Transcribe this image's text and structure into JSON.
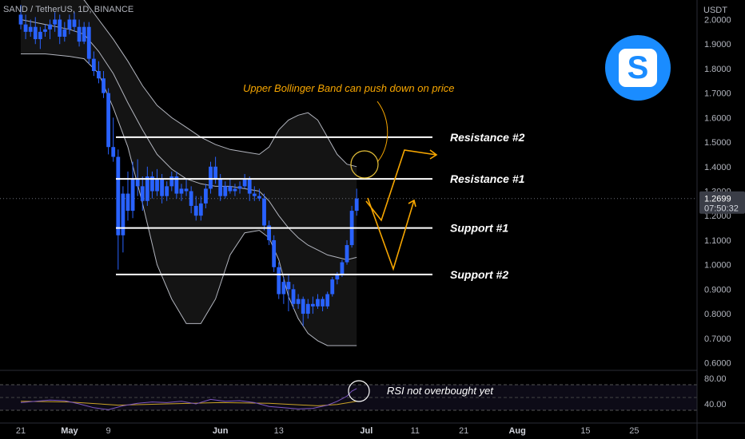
{
  "header": {
    "symbol": "SAND / TetherUS, 1D, BINANCE",
    "currency": "USDT"
  },
  "price_tag": {
    "price": "1.2699",
    "countdown": "07:50:32"
  },
  "logo_letter": "S",
  "colors": {
    "background": "#000000",
    "candle": "#2962ff",
    "band": "#b2b5be",
    "band_fill": "#141414",
    "level_line": "#ffffff",
    "annotation": "#f7a600",
    "rsi_line": "#7e57c2",
    "rsi_ma": "#c9a227"
  },
  "chart_data": [
    {
      "type": "candlestick",
      "title": "SAND / TetherUS, 1D, BINANCE",
      "y_axis": {
        "unit": "USDT",
        "range": [
          0.6,
          2.0
        ],
        "ticks": [
          2.0,
          1.9,
          1.8,
          1.7,
          1.6,
          1.5,
          1.4,
          1.3,
          1.2,
          1.1,
          1.0,
          0.9,
          0.8,
          0.7,
          0.6
        ],
        "tick_labels": [
          "2.0000",
          "1.9000",
          "1.8000",
          "1.7000",
          "1.6000",
          "1.5000",
          "1.4000",
          "1.3000",
          "1.2000",
          "1.1000",
          "1.0000",
          "0.9000",
          "0.8000",
          "0.7000",
          "0.6000"
        ],
        "last_price": 1.2699
      },
      "x_axis": {
        "tick_labels": [
          "21",
          "May",
          "9",
          "Jun",
          "13",
          "Jul",
          "11",
          "21",
          "Aug",
          "15",
          "25"
        ],
        "start_date": "2022-04-21",
        "end_date": "2022-08-27",
        "ticks": [
          "2022-04-21",
          "2022-05-01",
          "2022-05-09",
          "2022-06-01",
          "2022-06-13",
          "2022-07-01",
          "2022-07-11",
          "2022-07-21",
          "2022-08-01",
          "2022-08-15",
          "2022-08-25"
        ]
      },
      "candles": [
        [
          "2022-04-21",
          2.02,
          2.06,
          1.96,
          1.98
        ],
        [
          "2022-04-22",
          1.98,
          2.02,
          1.92,
          1.95
        ],
        [
          "2022-04-23",
          1.95,
          2.0,
          1.93,
          1.97
        ],
        [
          "2022-04-24",
          1.97,
          2.01,
          1.9,
          1.92
        ],
        [
          "2022-04-25",
          1.92,
          1.97,
          1.88,
          1.95
        ],
        [
          "2022-04-26",
          1.95,
          1.98,
          1.93,
          1.96
        ],
        [
          "2022-04-27",
          1.96,
          2.0,
          1.92,
          1.98
        ],
        [
          "2022-04-28",
          1.98,
          2.03,
          1.95,
          2.0
        ],
        [
          "2022-04-29",
          2.0,
          2.02,
          1.9,
          1.93
        ],
        [
          "2022-04-30",
          1.93,
          1.99,
          1.91,
          1.96
        ],
        [
          "2022-05-01",
          1.96,
          2.02,
          1.94,
          2.0
        ],
        [
          "2022-05-02",
          2.0,
          2.03,
          1.95,
          1.97
        ],
        [
          "2022-05-03",
          1.97,
          2.0,
          1.89,
          1.91
        ],
        [
          "2022-05-04",
          1.91,
          1.99,
          1.9,
          1.97
        ],
        [
          "2022-05-05",
          1.97,
          1.99,
          1.82,
          1.84
        ],
        [
          "2022-05-06",
          1.84,
          1.87,
          1.77,
          1.79
        ],
        [
          "2022-05-07",
          1.79,
          1.83,
          1.74,
          1.76
        ],
        [
          "2022-05-08",
          1.76,
          1.79,
          1.68,
          1.7
        ],
        [
          "2022-05-09",
          1.7,
          1.72,
          1.45,
          1.48
        ],
        [
          "2022-05-10",
          1.48,
          1.6,
          1.42,
          1.44
        ],
        [
          "2022-05-11",
          1.44,
          1.47,
          0.98,
          1.12
        ],
        [
          "2022-05-12",
          1.12,
          1.32,
          1.05,
          1.29
        ],
        [
          "2022-05-13",
          1.29,
          1.38,
          1.18,
          1.22
        ],
        [
          "2022-05-14",
          1.22,
          1.42,
          1.19,
          1.35
        ],
        [
          "2022-05-15",
          1.35,
          1.43,
          1.28,
          1.32
        ],
        [
          "2022-05-16",
          1.32,
          1.36,
          1.22,
          1.26
        ],
        [
          "2022-05-17",
          1.26,
          1.4,
          1.24,
          1.36
        ],
        [
          "2022-05-18",
          1.36,
          1.38,
          1.27,
          1.3
        ],
        [
          "2022-05-19",
          1.3,
          1.39,
          1.28,
          1.35
        ],
        [
          "2022-05-20",
          1.35,
          1.37,
          1.25,
          1.28
        ],
        [
          "2022-05-21",
          1.28,
          1.34,
          1.26,
          1.32
        ],
        [
          "2022-05-22",
          1.32,
          1.38,
          1.3,
          1.36
        ],
        [
          "2022-05-23",
          1.36,
          1.38,
          1.27,
          1.29
        ],
        [
          "2022-05-24",
          1.29,
          1.33,
          1.26,
          1.31
        ],
        [
          "2022-05-25",
          1.31,
          1.35,
          1.28,
          1.3
        ],
        [
          "2022-05-26",
          1.3,
          1.32,
          1.21,
          1.24
        ],
        [
          "2022-05-27",
          1.24,
          1.28,
          1.18,
          1.2
        ],
        [
          "2022-05-28",
          1.2,
          1.28,
          1.18,
          1.25
        ],
        [
          "2022-05-29",
          1.25,
          1.33,
          1.23,
          1.31
        ],
        [
          "2022-05-30",
          1.31,
          1.42,
          1.29,
          1.4
        ],
        [
          "2022-05-31",
          1.4,
          1.44,
          1.33,
          1.35
        ],
        [
          "2022-06-01",
          1.35,
          1.37,
          1.26,
          1.28
        ],
        [
          "2022-06-02",
          1.28,
          1.34,
          1.27,
          1.32
        ],
        [
          "2022-06-03",
          1.32,
          1.35,
          1.29,
          1.3
        ],
        [
          "2022-06-04",
          1.3,
          1.33,
          1.28,
          1.31
        ],
        [
          "2022-06-05",
          1.31,
          1.34,
          1.29,
          1.32
        ],
        [
          "2022-06-06",
          1.32,
          1.37,
          1.31,
          1.35
        ],
        [
          "2022-06-07",
          1.35,
          1.36,
          1.26,
          1.29
        ],
        [
          "2022-06-08",
          1.29,
          1.32,
          1.26,
          1.28
        ],
        [
          "2022-06-09",
          1.28,
          1.31,
          1.26,
          1.27
        ],
        [
          "2022-06-10",
          1.27,
          1.29,
          1.14,
          1.16
        ],
        [
          "2022-06-11",
          1.16,
          1.18,
          1.08,
          1.1
        ],
        [
          "2022-06-12",
          1.1,
          1.12,
          0.97,
          0.99
        ],
        [
          "2022-06-13",
          0.99,
          1.01,
          0.86,
          0.88
        ],
        [
          "2022-06-14",
          0.88,
          0.95,
          0.84,
          0.93
        ],
        [
          "2022-06-15",
          0.93,
          0.96,
          0.81,
          0.9
        ],
        [
          "2022-06-16",
          0.9,
          0.92,
          0.82,
          0.84
        ],
        [
          "2022-06-17",
          0.84,
          0.88,
          0.82,
          0.86
        ],
        [
          "2022-06-18",
          0.86,
          0.87,
          0.75,
          0.8
        ],
        [
          "2022-06-19",
          0.8,
          0.86,
          0.78,
          0.84
        ],
        [
          "2022-06-20",
          0.84,
          0.87,
          0.8,
          0.83
        ],
        [
          "2022-06-21",
          0.83,
          0.88,
          0.82,
          0.86
        ],
        [
          "2022-06-22",
          0.86,
          0.87,
          0.81,
          0.83
        ],
        [
          "2022-06-23",
          0.83,
          0.89,
          0.82,
          0.88
        ],
        [
          "2022-06-24",
          0.88,
          0.95,
          0.87,
          0.94
        ],
        [
          "2022-06-25",
          0.94,
          0.97,
          0.92,
          0.96
        ],
        [
          "2022-06-26",
          0.96,
          1.02,
          0.95,
          1.01
        ],
        [
          "2022-06-27",
          1.01,
          1.1,
          1.0,
          1.08
        ],
        [
          "2022-06-28",
          1.08,
          1.24,
          1.07,
          1.22
        ],
        [
          "2022-06-29",
          1.22,
          1.31,
          1.2,
          1.27
        ]
      ],
      "bollinger": {
        "dates": [
          "2022-04-21",
          "2022-04-26",
          "2022-05-01",
          "2022-05-04",
          "2022-05-07",
          "2022-05-10",
          "2022-05-13",
          "2022-05-16",
          "2022-05-19",
          "2022-05-22",
          "2022-05-25",
          "2022-05-28",
          "2022-05-31",
          "2022-06-03",
          "2022-06-06",
          "2022-06-09",
          "2022-06-11",
          "2022-06-13",
          "2022-06-15",
          "2022-06-17",
          "2022-06-19",
          "2022-06-21",
          "2022-06-23",
          "2022-06-25",
          "2022-06-27",
          "2022-06-29"
        ],
        "upper": [
          2.15,
          2.12,
          2.1,
          2.08,
          2.0,
          1.92,
          1.83,
          1.73,
          1.65,
          1.6,
          1.56,
          1.52,
          1.49,
          1.47,
          1.46,
          1.45,
          1.48,
          1.55,
          1.59,
          1.61,
          1.62,
          1.59,
          1.52,
          1.45,
          1.41,
          1.4
        ],
        "middle": [
          2.0,
          1.98,
          1.96,
          1.94,
          1.87,
          1.78,
          1.66,
          1.55,
          1.45,
          1.39,
          1.35,
          1.33,
          1.32,
          1.32,
          1.31,
          1.3,
          1.26,
          1.2,
          1.15,
          1.11,
          1.08,
          1.06,
          1.04,
          1.03,
          1.02,
          1.03
        ],
        "lower": [
          1.86,
          1.86,
          1.85,
          1.84,
          1.78,
          1.64,
          1.48,
          1.25,
          1.0,
          0.86,
          0.76,
          0.76,
          0.86,
          1.04,
          1.13,
          1.14,
          1.11,
          1.02,
          0.87,
          0.78,
          0.72,
          0.69,
          0.67,
          0.67,
          0.67,
          0.67
        ]
      },
      "levels": [
        {
          "name": "Resistance #2",
          "value": 1.52
        },
        {
          "name": "Resistance #1",
          "value": 1.35
        },
        {
          "name": "Support #1",
          "value": 1.15
        },
        {
          "name": "Support #2",
          "value": 0.96
        }
      ],
      "annotations": [
        {
          "text": "Upper Bollinger Band can push down on price"
        },
        {
          "text": "RSI not overbought yet"
        }
      ]
    },
    {
      "type": "line",
      "title": "RSI",
      "y_axis": {
        "range": [
          30,
          90
        ],
        "ticks": [
          80,
          40
        ],
        "tick_labels": [
          "80.00",
          "40.00"
        ],
        "bands": [
          70,
          50,
          30
        ]
      },
      "series": [
        {
          "dates": [
            "2022-04-21",
            "2022-04-24",
            "2022-04-27",
            "2022-04-30",
            "2022-05-03",
            "2022-05-06",
            "2022-05-09",
            "2022-05-12",
            "2022-05-15",
            "2022-05-18",
            "2022-05-21",
            "2022-05-24",
            "2022-05-27",
            "2022-05-30",
            "2022-06-02",
            "2022-06-05",
            "2022-06-08",
            "2022-06-11",
            "2022-06-14",
            "2022-06-17",
            "2022-06-20",
            "2022-06-23",
            "2022-06-25",
            "2022-06-27",
            "2022-06-28",
            "2022-06-29"
          ],
          "values": [
            42,
            44,
            46,
            45,
            40,
            34,
            31,
            37,
            41,
            43,
            42,
            44,
            40,
            47,
            44,
            45,
            42,
            36,
            34,
            32,
            33,
            38,
            44,
            52,
            60,
            64
          ]
        },
        {
          "dates": [
            "2022-04-21",
            "2022-05-01",
            "2022-05-11",
            "2022-05-21",
            "2022-06-01",
            "2022-06-11",
            "2022-06-21",
            "2022-06-25",
            "2022-06-29"
          ],
          "values": [
            44,
            43,
            38,
            40,
            42,
            41,
            37,
            39,
            44
          ]
        }
      ]
    }
  ]
}
